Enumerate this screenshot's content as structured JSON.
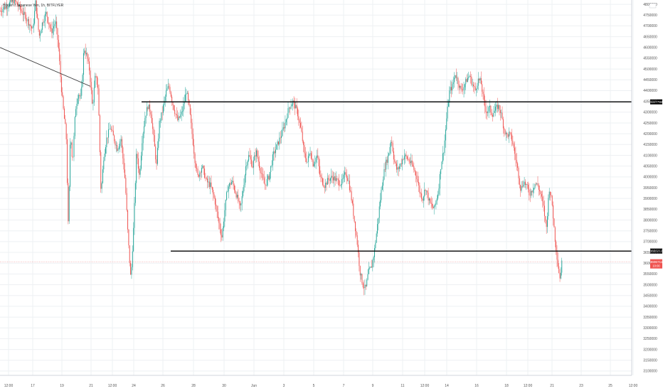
{
  "chart_data": {
    "type": "candlestick",
    "title": "Bitcoin / Japanese Yen, 1h, BITFLYER",
    "currency": "JPY",
    "ylim": [
      3080000,
      4820000
    ],
    "y_ticks": [
      4800000,
      4750000,
      4700000,
      4650000,
      4600000,
      4550000,
      4500000,
      4450000,
      4400000,
      4350000,
      4300000,
      4250000,
      4200000,
      4150000,
      4100000,
      4050000,
      4000000,
      3950000,
      3900000,
      3850000,
      3800000,
      3750000,
      3700000,
      3650000,
      3600000,
      3550000,
      3500000,
      3450000,
      3400000,
      3350000,
      3300000,
      3250000,
      3200000,
      3150000,
      3100000
    ],
    "y_tick_labels": [
      "4800000",
      "4750000",
      "4700000",
      "4650000",
      "4600000",
      "4550000",
      "4500000",
      "4450000",
      "4400000",
      "4350000",
      "4300000",
      "4250000",
      "4200000",
      "4150000",
      "4100000",
      "4050000",
      "4000000",
      "3950000",
      "3900000",
      "3850000",
      "3800000",
      "3750000",
      "3700000",
      "3650000",
      "3600000",
      "3550000",
      "3500000",
      "3450000",
      "3400000",
      "3350000",
      "3300000",
      "3250000",
      "3200000",
      "3150000",
      "3100000"
    ],
    "x_ticks": [
      {
        "label": "12:00",
        "x": 12
      },
      {
        "label": "17",
        "x": 46
      },
      {
        "label": "19",
        "x": 87
      },
      {
        "label": "21",
        "x": 128
      },
      {
        "label": "12:00",
        "x": 158
      },
      {
        "label": "24",
        "x": 188
      },
      {
        "label": "26",
        "x": 229
      },
      {
        "label": "28",
        "x": 272
      },
      {
        "label": "30",
        "x": 315
      },
      {
        "label": "Jun",
        "x": 357
      },
      {
        "label": "3",
        "x": 399
      },
      {
        "label": "5",
        "x": 441
      },
      {
        "label": "7",
        "x": 483
      },
      {
        "label": "9",
        "x": 524
      },
      {
        "label": "11",
        "x": 566
      },
      {
        "label": "12:00",
        "x": 597
      },
      {
        "label": "14",
        "x": 628
      },
      {
        "label": "16",
        "x": 670
      },
      {
        "label": "18",
        "x": 712
      },
      {
        "label": "12:00",
        "x": 742
      },
      {
        "label": "21",
        "x": 776
      },
      {
        "label": "23",
        "x": 817
      },
      {
        "label": "25",
        "x": 858
      },
      {
        "label": "12:00",
        "x": 890
      }
    ],
    "horizontal_lines": [
      {
        "price": 4347782,
        "label": "4347782"
      },
      {
        "price": 3656212,
        "label": "3656212"
      }
    ],
    "trend_line": {
      "from_price": 4600000,
      "to_price": 4420000
    },
    "last_price": {
      "label": "3606711",
      "sub_label": "10:00"
    },
    "price_path": [
      [
        0,
        4770000
      ],
      [
        20,
        4820000
      ],
      [
        40,
        4720000
      ],
      [
        46,
        4680000
      ],
      [
        50,
        4810000
      ],
      [
        55,
        4650000
      ],
      [
        60,
        4720000
      ],
      [
        65,
        4760000
      ],
      [
        72,
        4670000
      ],
      [
        78,
        4720000
      ],
      [
        82,
        4610000
      ],
      [
        86,
        4420000
      ],
      [
        90,
        4280000
      ],
      [
        93,
        4200000
      ],
      [
        96,
        3760000
      ],
      [
        99,
        4220000
      ],
      [
        102,
        4060000
      ],
      [
        106,
        4310000
      ],
      [
        110,
        4390000
      ],
      [
        114,
        4360000
      ],
      [
        118,
        4600000
      ],
      [
        122,
        4560000
      ],
      [
        126,
        4490000
      ],
      [
        130,
        4320000
      ],
      [
        134,
        4470000
      ],
      [
        138,
        4410000
      ],
      [
        142,
        3920000
      ],
      [
        146,
        4100000
      ],
      [
        150,
        4180000
      ],
      [
        155,
        4230000
      ],
      [
        160,
        4180000
      ],
      [
        165,
        4130000
      ],
      [
        170,
        4180000
      ],
      [
        176,
        3980000
      ],
      [
        180,
        3720000
      ],
      [
        184,
        3520000
      ],
      [
        188,
        3780000
      ],
      [
        192,
        4120000
      ],
      [
        196,
        4000000
      ],
      [
        200,
        4180000
      ],
      [
        204,
        4280000
      ],
      [
        208,
        4330000
      ],
      [
        212,
        4300000
      ],
      [
        216,
        4180000
      ],
      [
        220,
        4050000
      ],
      [
        224,
        4250000
      ],
      [
        228,
        4300000
      ],
      [
        234,
        4400000
      ],
      [
        238,
        4420000
      ],
      [
        242,
        4350000
      ],
      [
        246,
        4300000
      ],
      [
        250,
        4260000
      ],
      [
        256,
        4300000
      ],
      [
        262,
        4400000
      ],
      [
        266,
        4320000
      ],
      [
        270,
        4200000
      ],
      [
        274,
        4080000
      ],
      [
        278,
        4000000
      ],
      [
        284,
        4050000
      ],
      [
        290,
        3980000
      ],
      [
        296,
        3960000
      ],
      [
        302,
        3890000
      ],
      [
        308,
        3780000
      ],
      [
        312,
        3720000
      ],
      [
        316,
        3850000
      ],
      [
        320,
        3950000
      ],
      [
        326,
        3980000
      ],
      [
        332,
        3920000
      ],
      [
        338,
        3850000
      ],
      [
        342,
        3950000
      ],
      [
        346,
        4060000
      ],
      [
        350,
        4100000
      ],
      [
        355,
        4050000
      ],
      [
        360,
        4120000
      ],
      [
        366,
        4030000
      ],
      [
        372,
        3960000
      ],
      [
        378,
        4000000
      ],
      [
        384,
        4100000
      ],
      [
        390,
        4150000
      ],
      [
        396,
        4200000
      ],
      [
        400,
        4240000
      ],
      [
        406,
        4320000
      ],
      [
        412,
        4350000
      ],
      [
        418,
        4300000
      ],
      [
        424,
        4200000
      ],
      [
        428,
        4100000
      ],
      [
        432,
        4070000
      ],
      [
        436,
        4120000
      ],
      [
        440,
        4060000
      ],
      [
        446,
        4100000
      ],
      [
        450,
        4000000
      ],
      [
        456,
        3960000
      ],
      [
        462,
        3990000
      ],
      [
        468,
        4000000
      ],
      [
        474,
        3980000
      ],
      [
        480,
        3970000
      ],
      [
        486,
        4020000
      ],
      [
        490,
        3980000
      ],
      [
        494,
        3900000
      ],
      [
        498,
        3800000
      ],
      [
        502,
        3700000
      ],
      [
        506,
        3560000
      ],
      [
        510,
        3500000
      ],
      [
        514,
        3480000
      ],
      [
        518,
        3560000
      ],
      [
        522,
        3580000
      ],
      [
        526,
        3650000
      ],
      [
        530,
        3760000
      ],
      [
        534,
        3880000
      ],
      [
        538,
        3990000
      ],
      [
        542,
        4060000
      ],
      [
        546,
        4100000
      ],
      [
        550,
        4180000
      ],
      [
        554,
        4080000
      ],
      [
        558,
        4030000
      ],
      [
        562,
        4050000
      ],
      [
        568,
        4100000
      ],
      [
        574,
        4080000
      ],
      [
        580,
        4050000
      ],
      [
        586,
        4000000
      ],
      [
        590,
        3930000
      ],
      [
        594,
        3900000
      ],
      [
        598,
        3950000
      ],
      [
        604,
        3880000
      ],
      [
        610,
        3850000
      ],
      [
        616,
        3930000
      ],
      [
        620,
        4060000
      ],
      [
        624,
        4130000
      ],
      [
        628,
        4280000
      ],
      [
        632,
        4400000
      ],
      [
        636,
        4420000
      ],
      [
        640,
        4480000
      ],
      [
        644,
        4440000
      ],
      [
        648,
        4400000
      ],
      [
        652,
        4420000
      ],
      [
        656,
        4450000
      ],
      [
        660,
        4470000
      ],
      [
        664,
        4430000
      ],
      [
        668,
        4400000
      ],
      [
        672,
        4450000
      ],
      [
        676,
        4440000
      ],
      [
        680,
        4350000
      ],
      [
        684,
        4300000
      ],
      [
        688,
        4320000
      ],
      [
        692,
        4290000
      ],
      [
        696,
        4310000
      ],
      [
        700,
        4330000
      ],
      [
        704,
        4300000
      ],
      [
        708,
        4230000
      ],
      [
        712,
        4190000
      ],
      [
        716,
        4200000
      ],
      [
        720,
        4170000
      ],
      [
        724,
        4100000
      ],
      [
        728,
        4030000
      ],
      [
        732,
        3940000
      ],
      [
        736,
        3980000
      ],
      [
        740,
        3960000
      ],
      [
        744,
        3920000
      ],
      [
        748,
        3940000
      ],
      [
        752,
        3970000
      ],
      [
        756,
        3960000
      ],
      [
        760,
        3920000
      ],
      [
        764,
        3860000
      ],
      [
        768,
        3760000
      ],
      [
        772,
        3950000
      ],
      [
        776,
        3880000
      ],
      [
        780,
        3720000
      ],
      [
        784,
        3600000
      ],
      [
        787,
        3530000
      ],
      [
        790,
        3606711
      ]
    ]
  }
}
